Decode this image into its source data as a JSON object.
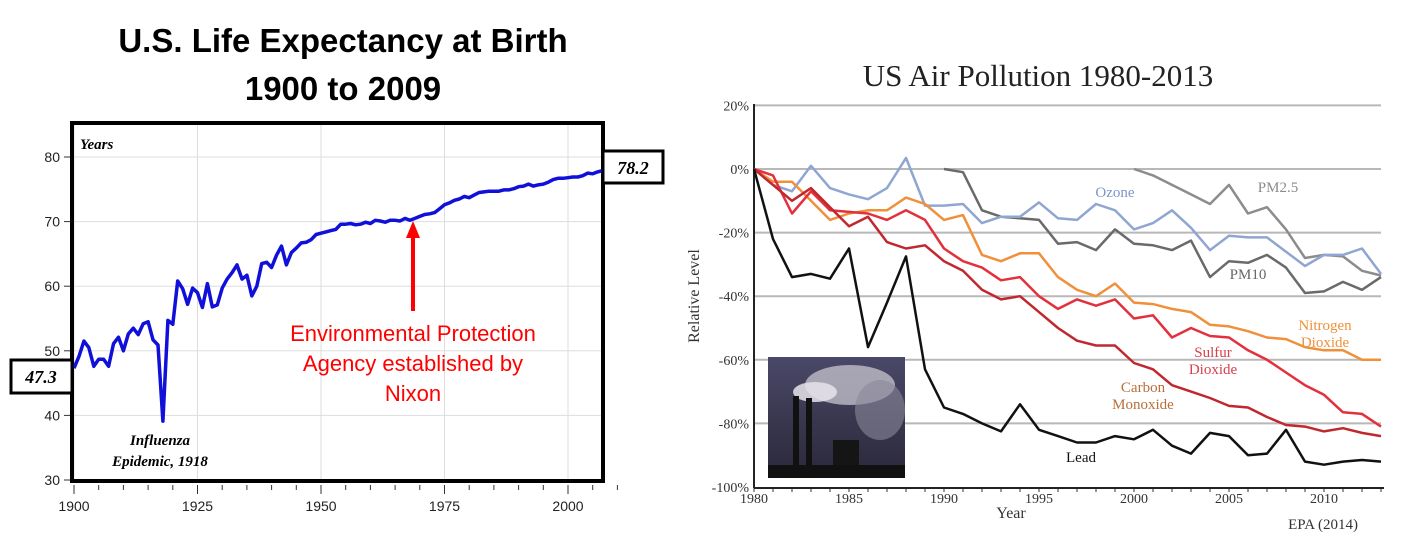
{
  "chart_data": [
    {
      "type": "line",
      "title": [
        "U.S. Life Expectancy at Birth",
        "1900 to 2009"
      ],
      "ylabel": "Years",
      "xlabel": "",
      "xlim": [
        1900,
        2010
      ],
      "ylim": [
        30,
        85
      ],
      "xticks": [
        "1900",
        "1925",
        "1950",
        "1975",
        "2000"
      ],
      "yticks": [
        "30",
        "40",
        "50",
        "60",
        "70",
        "80"
      ],
      "grid": true,
      "series_color": "#1010d8",
      "start_label": "47.3",
      "end_label": "78.2",
      "annotations": {
        "influenza": [
          "Influenza",
          "Epidemic, 1918"
        ],
        "epa": [
          "Environmental Protection",
          "Agency established by",
          "Nixon"
        ],
        "epa_year": 1970,
        "epa_color": "#ff0000"
      },
      "x": [
        1900,
        1901,
        1902,
        1903,
        1904,
        1905,
        1906,
        1907,
        1908,
        1909,
        1910,
        1911,
        1912,
        1913,
        1914,
        1915,
        1916,
        1917,
        1918,
        1919,
        1920,
        1921,
        1922,
        1923,
        1924,
        1925,
        1926,
        1927,
        1928,
        1929,
        1930,
        1931,
        1932,
        1933,
        1934,
        1935,
        1936,
        1937,
        1938,
        1939,
        1940,
        1941,
        1942,
        1943,
        1944,
        1945,
        1946,
        1947,
        1948,
        1949,
        1950,
        1951,
        1952,
        1953,
        1954,
        1955,
        1956,
        1957,
        1958,
        1959,
        1960,
        1961,
        1962,
        1963,
        1964,
        1965,
        1966,
        1967,
        1968,
        1969,
        1970,
        1971,
        1972,
        1973,
        1974,
        1975,
        1976,
        1977,
        1978,
        1979,
        1980,
        1981,
        1982,
        1983,
        1984,
        1985,
        1986,
        1987,
        1988,
        1989,
        1990,
        1991,
        1992,
        1993,
        1994,
        1995,
        1996,
        1997,
        1998,
        1999,
        2000,
        2001,
        2002,
        2003,
        2004,
        2005,
        2006,
        2007,
        2008,
        2009
      ],
      "values": [
        47.3,
        49.1,
        51.5,
        50.5,
        47.6,
        48.7,
        48.7,
        47.6,
        51.1,
        52.1,
        50.0,
        52.6,
        53.5,
        52.5,
        54.2,
        54.5,
        51.7,
        50.9,
        39.1,
        54.7,
        54.1,
        60.8,
        59.6,
        57.2,
        59.7,
        59.0,
        56.7,
        60.4,
        56.8,
        57.1,
        59.7,
        61.1,
        62.1,
        63.3,
        61.1,
        61.7,
        58.5,
        60.0,
        63.5,
        63.7,
        62.9,
        64.8,
        66.2,
        63.3,
        65.2,
        65.9,
        66.7,
        66.8,
        67.2,
        68.0,
        68.2,
        68.4,
        68.6,
        68.8,
        69.6,
        69.6,
        69.7,
        69.5,
        69.6,
        69.9,
        69.7,
        70.2,
        70.1,
        69.9,
        70.2,
        70.2,
        70.1,
        70.5,
        70.2,
        70.5,
        70.8,
        71.1,
        71.2,
        71.4,
        72.0,
        72.6,
        72.9,
        73.3,
        73.5,
        73.9,
        73.7,
        74.1,
        74.5,
        74.6,
        74.7,
        74.7,
        74.7,
        74.9,
        74.9,
        75.1,
        75.4,
        75.5,
        75.8,
        75.5,
        75.7,
        75.8,
        76.1,
        76.5,
        76.7,
        76.7,
        76.8,
        76.9,
        76.9,
        77.1,
        77.5,
        77.4,
        77.7,
        77.9,
        78.0,
        78.2
      ]
    },
    {
      "type": "line",
      "title": "US Air Pollution 1980-2013",
      "xlabel": "Year",
      "ylabel": "Relative Level",
      "source": "EPA (2014)",
      "xlim": [
        1980,
        2013
      ],
      "ylim": [
        -100,
        20
      ],
      "xticks": [
        "1980",
        "1985",
        "1990",
        "1995",
        "2000",
        "2005",
        "2010"
      ],
      "yticks": [
        "20%",
        "0%",
        "-20%",
        "-40%",
        "-60%",
        "-80%",
        "-100%"
      ],
      "grid": true,
      "series": [
        {
          "name": "Lead",
          "label": [
            "Lead"
          ],
          "color": "#111111",
          "start": 1980,
          "values": [
            0,
            -22,
            -34,
            -33,
            -34.5,
            -25,
            -56,
            -42,
            -27.5,
            -63,
            -75,
            -77,
            -80,
            -82.5,
            -74,
            -82,
            -84,
            -86,
            -86,
            -84,
            -85,
            -82,
            -87,
            -89.5,
            -83,
            -84,
            -90,
            -89.5,
            -82,
            -92,
            -93,
            -92,
            -91.5,
            -92
          ]
        },
        {
          "name": "Carbon Monoxide",
          "label": [
            "Carbon",
            "Monoxide"
          ],
          "color": "#c0282e",
          "text_color": "#b8703a",
          "start": 1980,
          "values": [
            0,
            -5,
            -10,
            -6,
            -12,
            -18,
            -15,
            -23,
            -25,
            -24,
            -29,
            -32,
            -38,
            -41,
            -40,
            -45,
            -50,
            -54,
            -55.5,
            -55.5,
            -61,
            -63,
            -68,
            -70,
            -72,
            -74.5,
            -75,
            -78,
            -80.5,
            -81,
            -82.5,
            -81.5,
            -83,
            -84
          ]
        },
        {
          "name": "Sulfur Dioxide",
          "label": [
            "Sulfur",
            "Dioxide"
          ],
          "color": "#e3303c",
          "text_color": "#d8404a",
          "start": 1980,
          "values": [
            0,
            -2,
            -14,
            -7,
            -13,
            -13.5,
            -14,
            -16,
            -13,
            -16,
            -25,
            -29,
            -31,
            -35,
            -34,
            -40,
            -44,
            -41,
            -43,
            -41,
            -47,
            -46,
            -53,
            -50,
            -52.5,
            -53,
            -57,
            -60,
            -64,
            -68,
            -71,
            -76.5,
            -77,
            -81
          ]
        },
        {
          "name": "Nitrogen Dioxide",
          "label": [
            "Nitrogen",
            "Dioxide"
          ],
          "color": "#f0903a",
          "text_color": "#f0903a",
          "start": 1980,
          "values": [
            0,
            -4,
            -4,
            -10,
            -16,
            -14,
            -13,
            -13,
            -9,
            -11,
            -16,
            -14.5,
            -27,
            -29,
            -26.5,
            -26.5,
            -34,
            -38,
            -40,
            -36,
            -42,
            -42.5,
            -44,
            -45,
            -49,
            -49.5,
            -51,
            -53,
            -53.5,
            -56,
            -57,
            -57,
            -60,
            -60
          ]
        },
        {
          "name": "Ozone",
          "label": [
            "Ozone"
          ],
          "color": "#8fa6d2",
          "text_color": "#7d96c8",
          "start": 1980,
          "values": [
            0,
            -5,
            -7,
            1,
            -6,
            -8,
            -9.5,
            -6,
            3.5,
            -11.5,
            -11.5,
            -11,
            -17,
            -15,
            -15,
            -10.5,
            -15.5,
            -16,
            -11,
            -13,
            -19,
            -17,
            -13,
            -18.5,
            -25.5,
            -21,
            -21.5,
            -21.5,
            -26,
            -30.5,
            -27,
            -27,
            -25,
            -33
          ]
        },
        {
          "name": "PM10",
          "label": [
            "PM10"
          ],
          "color": "#6a6a6a",
          "text_color": "#666666",
          "start": 1990,
          "values": [
            0,
            -1,
            -13,
            -15,
            -15.5,
            -16,
            -23.5,
            -23,
            -25.5,
            -19,
            -23.5,
            -24,
            -25.5,
            -22.5,
            -34,
            -29,
            -29.5,
            -27,
            -31,
            -39,
            -38.5,
            -35.5,
            -38,
            -34
          ]
        },
        {
          "name": "PM2.5",
          "label": [
            "PM2.5"
          ],
          "color": "#8c8c8c",
          "text_color": "#8c8c8c",
          "start": 2000,
          "values": [
            0,
            -2,
            -5,
            -8,
            -11,
            -5,
            -14,
            -12,
            -19,
            -28,
            -27,
            -27.5,
            -32,
            -33.5
          ]
        }
      ],
      "inset_image": "smokestacks-photo"
    }
  ]
}
